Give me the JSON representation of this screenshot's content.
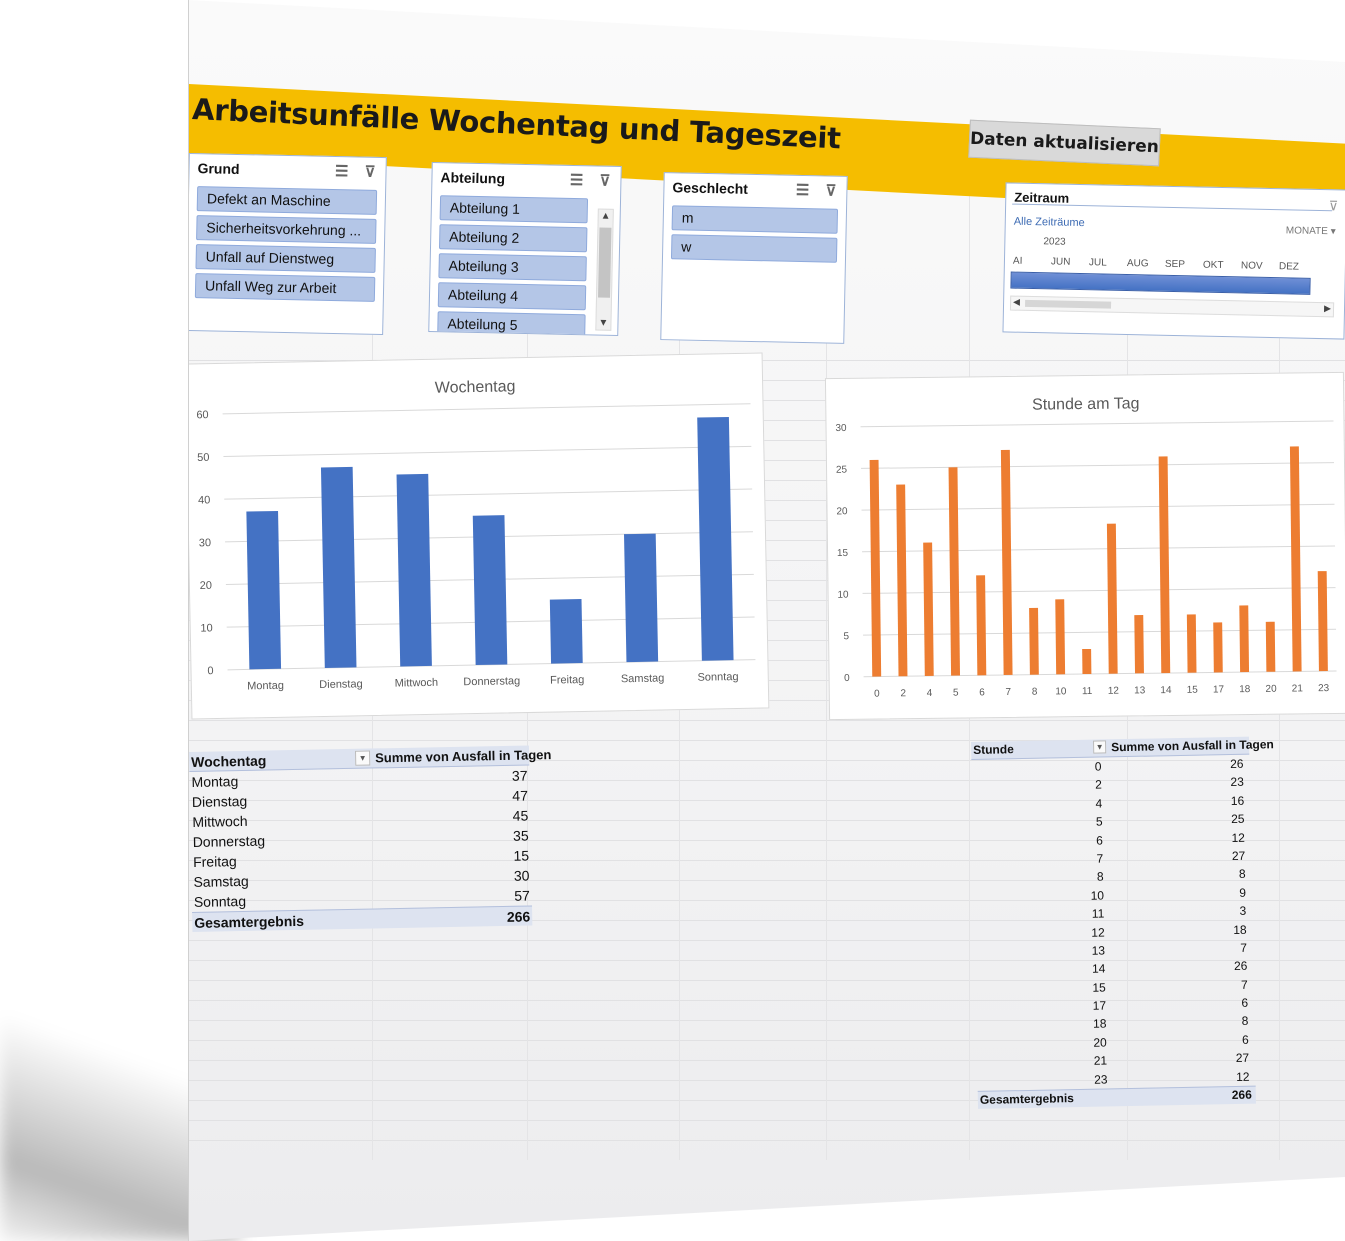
{
  "title": "Arbeitsunfälle Wochentag und Tageszeit",
  "refresh_button": "Daten aktualisieren",
  "slicers": {
    "grund": {
      "title": "Grund",
      "items": [
        "Defekt an Maschine",
        "Sicherheitsvorkehrung ...",
        "Unfall auf Dienstweg",
        "Unfall Weg zur Arbeit"
      ]
    },
    "abteilung": {
      "title": "Abteilung",
      "items": [
        "Abteilung 1",
        "Abteilung 2",
        "Abteilung 3",
        "Abteilung 4",
        "Abteilung 5"
      ]
    },
    "geschlecht": {
      "title": "Geschlecht",
      "items": [
        "m",
        "w"
      ]
    }
  },
  "timeline": {
    "title": "Zeitraum",
    "all_periods": "Alle Zeiträume",
    "level": "MONATE",
    "year": "2023",
    "months": [
      "AI",
      "JUN",
      "JUL",
      "AUG",
      "SEP",
      "OKT",
      "NOV",
      "DEZ"
    ]
  },
  "chart_data": [
    {
      "type": "bar",
      "title": "Wochentag",
      "categories": [
        "Montag",
        "Dienstag",
        "Mittwoch",
        "Donnerstag",
        "Freitag",
        "Samstag",
        "Sonntag"
      ],
      "values": [
        37,
        47,
        45,
        35,
        15,
        30,
        57
      ],
      "yticks": [
        0,
        10,
        20,
        30,
        40,
        50,
        60
      ],
      "ylim": [
        0,
        60
      ],
      "color": "#4472c4",
      "grid": true
    },
    {
      "type": "bar",
      "title": "Stunde am Tag",
      "categories": [
        "0",
        "2",
        "4",
        "5",
        "6",
        "7",
        "8",
        "10",
        "11",
        "12",
        "13",
        "14",
        "15",
        "17",
        "18",
        "20",
        "21",
        "23"
      ],
      "values": [
        26,
        23,
        16,
        25,
        12,
        27,
        8,
        9,
        3,
        18,
        7,
        26,
        7,
        6,
        8,
        6,
        27,
        12
      ],
      "yticks": [
        0,
        5,
        10,
        15,
        20,
        25,
        30
      ],
      "ylim": [
        0,
        30
      ],
      "color": "#ed7d31",
      "grid": true
    }
  ],
  "pivot_weekday": {
    "col1": "Wochentag",
    "col2": "Summe von Ausfall in Tagen",
    "rows": [
      {
        "label": "Montag",
        "value": "37"
      },
      {
        "label": "Dienstag",
        "value": "47"
      },
      {
        "label": "Mittwoch",
        "value": "45"
      },
      {
        "label": "Donnerstag",
        "value": "35"
      },
      {
        "label": "Freitag",
        "value": "15"
      },
      {
        "label": "Samstag",
        "value": "30"
      },
      {
        "label": "Sonntag",
        "value": "57"
      }
    ],
    "total_label": "Gesamtergebnis",
    "total_value": "266"
  },
  "pivot_hour": {
    "col1": "Stunde",
    "col2": "Summe von Ausfall in Tagen",
    "rows": [
      {
        "label": "0",
        "value": "26"
      },
      {
        "label": "2",
        "value": "23"
      },
      {
        "label": "4",
        "value": "16"
      },
      {
        "label": "5",
        "value": "25"
      },
      {
        "label": "6",
        "value": "12"
      },
      {
        "label": "7",
        "value": "27"
      },
      {
        "label": "8",
        "value": "8"
      },
      {
        "label": "10",
        "value": "9"
      },
      {
        "label": "11",
        "value": "3"
      },
      {
        "label": "12",
        "value": "18"
      },
      {
        "label": "13",
        "value": "7"
      },
      {
        "label": "14",
        "value": "26"
      },
      {
        "label": "15",
        "value": "7"
      },
      {
        "label": "17",
        "value": "6"
      },
      {
        "label": "18",
        "value": "8"
      },
      {
        "label": "20",
        "value": "6"
      },
      {
        "label": "21",
        "value": "27"
      },
      {
        "label": "23",
        "value": "12"
      }
    ],
    "total_label": "Gesamtergebnis",
    "total_value": "266"
  }
}
